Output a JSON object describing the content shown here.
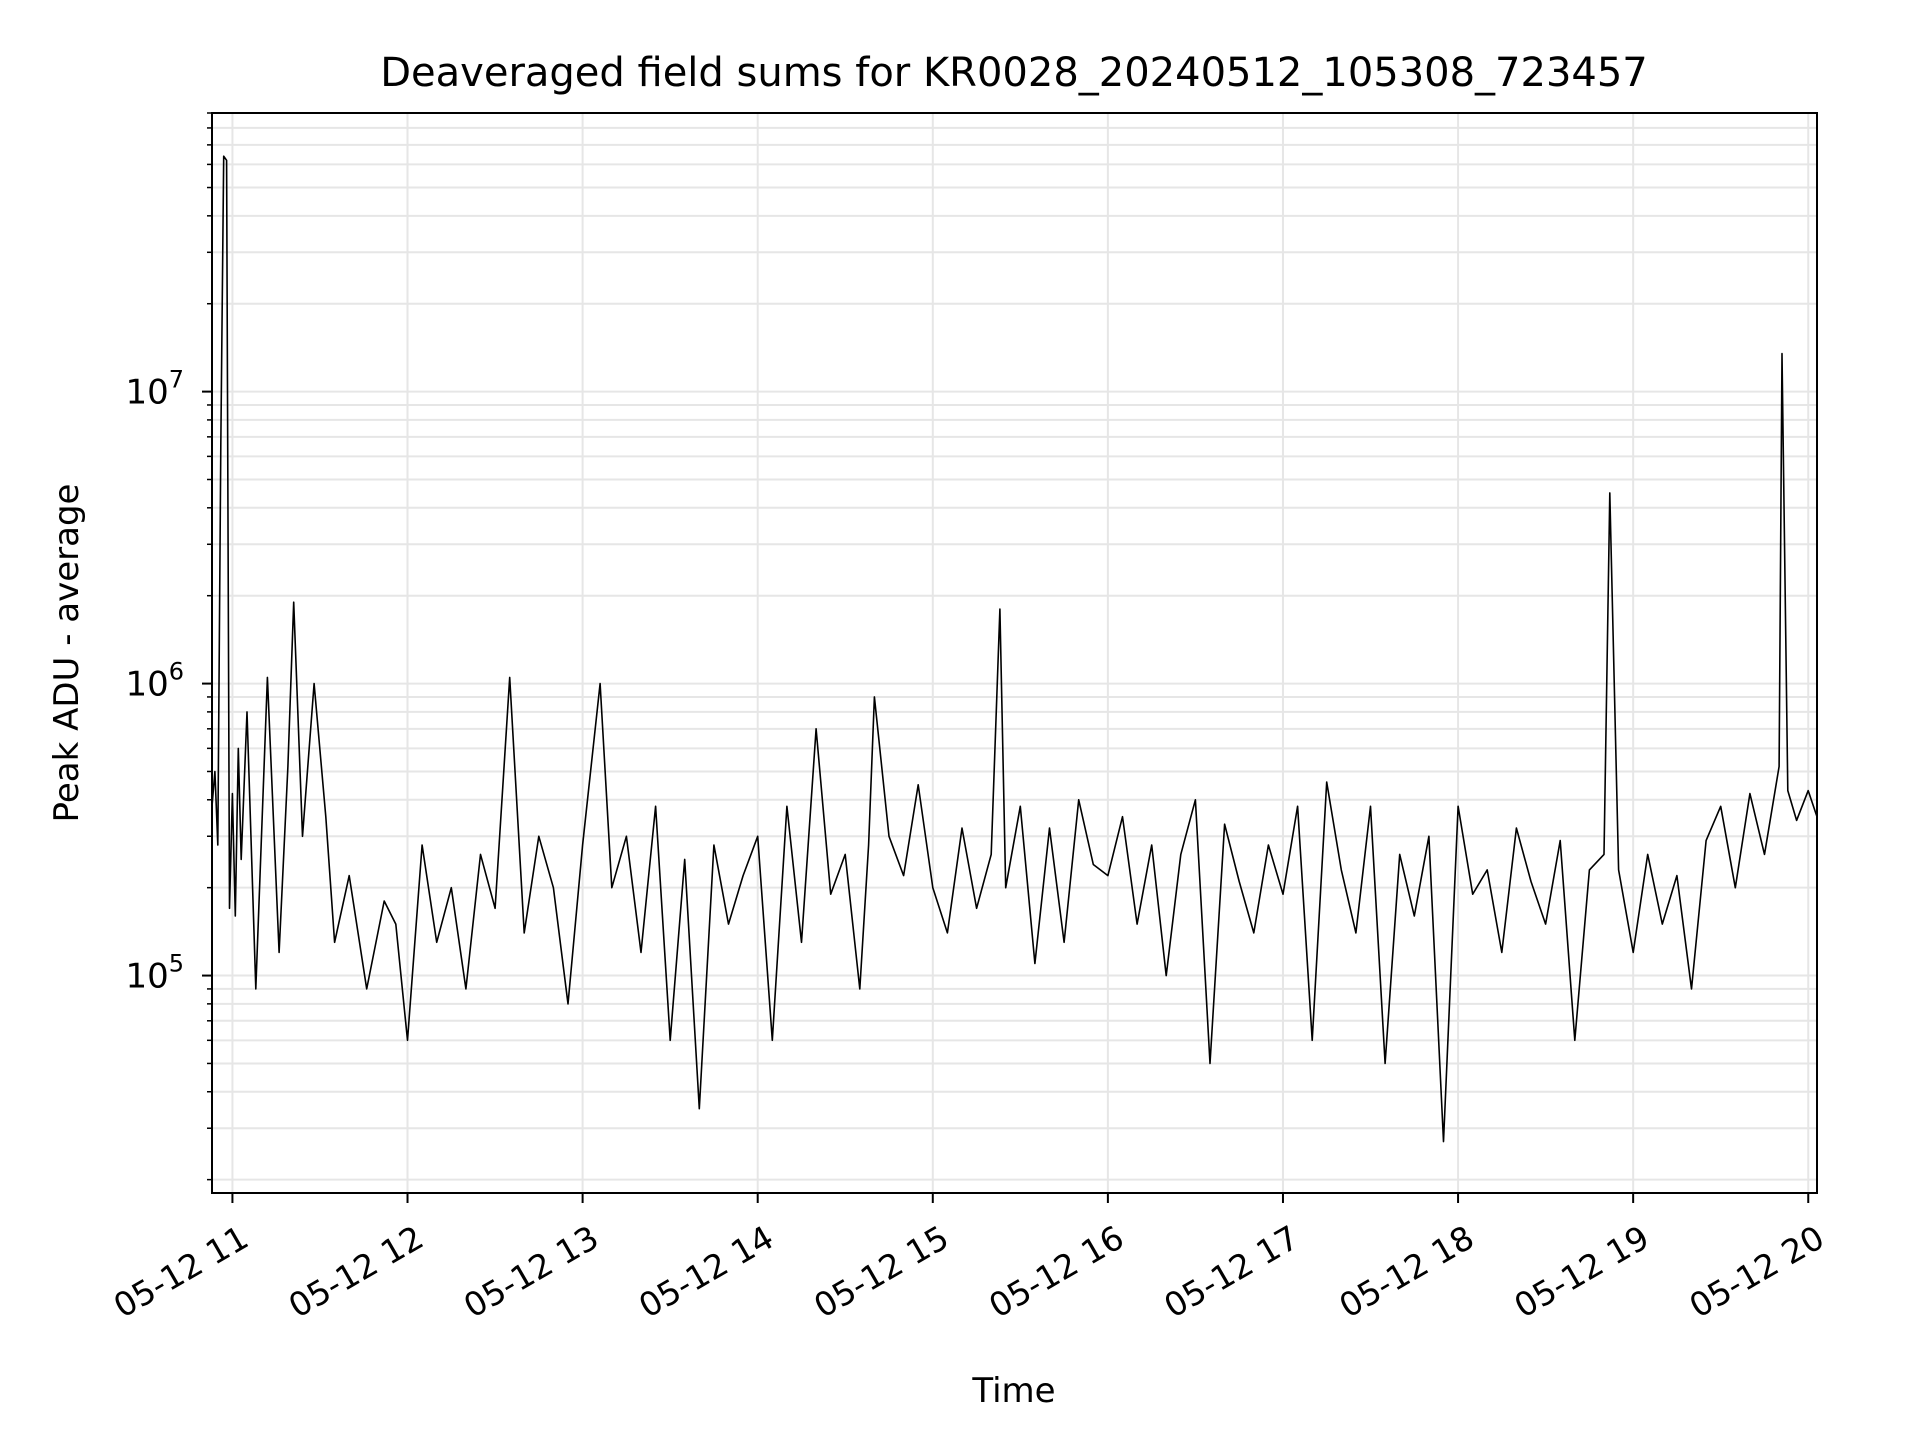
{
  "chart_data": {
    "type": "line",
    "title": "Deaveraged field sums for KR0028_20240512_105308_723457",
    "xlabel": "Time",
    "ylabel": "Peak ADU - average",
    "y_scale": "log",
    "ylim": [
      18000,
      90000000
    ],
    "xlim": [
      "2024-05-12 10:53",
      "2024-05-12 20:03"
    ],
    "grid": true,
    "legend": "none",
    "x_ticks": [
      {
        "value": "2024-05-12 11:00",
        "label": "05-12 11"
      },
      {
        "value": "2024-05-12 12:00",
        "label": "05-12 12"
      },
      {
        "value": "2024-05-12 13:00",
        "label": "05-12 13"
      },
      {
        "value": "2024-05-12 14:00",
        "label": "05-12 14"
      },
      {
        "value": "2024-05-12 15:00",
        "label": "05-12 15"
      },
      {
        "value": "2024-05-12 16:00",
        "label": "05-12 16"
      },
      {
        "value": "2024-05-12 17:00",
        "label": "05-12 17"
      },
      {
        "value": "2024-05-12 18:00",
        "label": "05-12 18"
      },
      {
        "value": "2024-05-12 19:00",
        "label": "05-12 19"
      },
      {
        "value": "2024-05-12 20:00",
        "label": "05-12 20"
      }
    ],
    "y_ticks": [
      {
        "value": 100000,
        "base": "10",
        "exp": "5"
      },
      {
        "value": 1000000,
        "base": "10",
        "exp": "6"
      },
      {
        "value": 10000000,
        "base": "10",
        "exp": "7"
      }
    ],
    "line_color": "#000000",
    "grid_color": "#e6e6e6",
    "series": [
      {
        "x": [
          "2024-05-12 10:53",
          "2024-05-12 10:54",
          "2024-05-12 10:55",
          "2024-05-12 10:56",
          "2024-05-12 10:57",
          "2024-05-12 10:58",
          "2024-05-12 10:59",
          "2024-05-12 11:00",
          "2024-05-12 11:01",
          "2024-05-12 11:02",
          "2024-05-12 11:03",
          "2024-05-12 11:05",
          "2024-05-12 11:08",
          "2024-05-12 11:12",
          "2024-05-12 11:16",
          "2024-05-12 11:19",
          "2024-05-12 11:21",
          "2024-05-12 11:24",
          "2024-05-12 11:28",
          "2024-05-12 11:32",
          "2024-05-12 11:35",
          "2024-05-12 11:40",
          "2024-05-12 11:46",
          "2024-05-12 11:52",
          "2024-05-12 11:56",
          "2024-05-12 12:00",
          "2024-05-12 12:05",
          "2024-05-12 12:10",
          "2024-05-12 12:15",
          "2024-05-12 12:20",
          "2024-05-12 12:25",
          "2024-05-12 12:30",
          "2024-05-12 12:35",
          "2024-05-12 12:40",
          "2024-05-12 12:45",
          "2024-05-12 12:50",
          "2024-05-12 12:55",
          "2024-05-12 13:00",
          "2024-05-12 13:06",
          "2024-05-12 13:10",
          "2024-05-12 13:15",
          "2024-05-12 13:20",
          "2024-05-12 13:25",
          "2024-05-12 13:30",
          "2024-05-12 13:35",
          "2024-05-12 13:40",
          "2024-05-12 13:45",
          "2024-05-12 13:50",
          "2024-05-12 13:55",
          "2024-05-12 14:00",
          "2024-05-12 14:05",
          "2024-05-12 14:10",
          "2024-05-12 14:15",
          "2024-05-12 14:20",
          "2024-05-12 14:25",
          "2024-05-12 14:30",
          "2024-05-12 14:35",
          "2024-05-12 14:38",
          "2024-05-12 14:40",
          "2024-05-12 14:45",
          "2024-05-12 14:50",
          "2024-05-12 14:55",
          "2024-05-12 15:00",
          "2024-05-12 15:05",
          "2024-05-12 15:10",
          "2024-05-12 15:15",
          "2024-05-12 15:20",
          "2024-05-12 15:23",
          "2024-05-12 15:25",
          "2024-05-12 15:30",
          "2024-05-12 15:35",
          "2024-05-12 15:40",
          "2024-05-12 15:45",
          "2024-05-12 15:50",
          "2024-05-12 15:55",
          "2024-05-12 16:00",
          "2024-05-12 16:05",
          "2024-05-12 16:10",
          "2024-05-12 16:15",
          "2024-05-12 16:20",
          "2024-05-12 16:25",
          "2024-05-12 16:30",
          "2024-05-12 16:35",
          "2024-05-12 16:40",
          "2024-05-12 16:45",
          "2024-05-12 16:50",
          "2024-05-12 16:55",
          "2024-05-12 17:00",
          "2024-05-12 17:05",
          "2024-05-12 17:10",
          "2024-05-12 17:15",
          "2024-05-12 17:20",
          "2024-05-12 17:25",
          "2024-05-12 17:30",
          "2024-05-12 17:35",
          "2024-05-12 17:40",
          "2024-05-12 17:45",
          "2024-05-12 17:50",
          "2024-05-12 17:55",
          "2024-05-12 18:00",
          "2024-05-12 18:05",
          "2024-05-12 18:10",
          "2024-05-12 18:15",
          "2024-05-12 18:20",
          "2024-05-12 18:25",
          "2024-05-12 18:30",
          "2024-05-12 18:35",
          "2024-05-12 18:40",
          "2024-05-12 18:45",
          "2024-05-12 18:50",
          "2024-05-12 18:52",
          "2024-05-12 18:55",
          "2024-05-12 19:00",
          "2024-05-12 19:05",
          "2024-05-12 19:10",
          "2024-05-12 19:15",
          "2024-05-12 19:20",
          "2024-05-12 19:25",
          "2024-05-12 19:30",
          "2024-05-12 19:35",
          "2024-05-12 19:40",
          "2024-05-12 19:45",
          "2024-05-12 19:50",
          "2024-05-12 19:51",
          "2024-05-12 19:53",
          "2024-05-12 19:56",
          "2024-05-12 20:00",
          "2024-05-12 20:03"
        ],
        "y": [
          380000,
          500000,
          280000,
          6500000,
          64000000,
          62000000,
          170000,
          420000,
          160000,
          600000,
          250000,
          800000,
          90000,
          1050000,
          120000,
          520000,
          1900000,
          300000,
          1000000,
          350000,
          130000,
          220000,
          90000,
          180000,
          150000,
          60000,
          280000,
          130000,
          200000,
          90000,
          260000,
          170000,
          1050000,
          140000,
          300000,
          200000,
          80000,
          280000,
          1000000,
          200000,
          300000,
          120000,
          380000,
          60000,
          250000,
          35000,
          280000,
          150000,
          220000,
          300000,
          60000,
          380000,
          130000,
          700000,
          190000,
          260000,
          90000,
          280000,
          900000,
          300000,
          220000,
          450000,
          200000,
          140000,
          320000,
          170000,
          260000,
          1800000,
          200000,
          380000,
          110000,
          320000,
          130000,
          400000,
          240000,
          220000,
          350000,
          150000,
          280000,
          100000,
          260000,
          400000,
          50000,
          330000,
          210000,
          140000,
          280000,
          190000,
          380000,
          60000,
          460000,
          230000,
          140000,
          380000,
          50000,
          260000,
          160000,
          300000,
          27000,
          380000,
          190000,
          230000,
          120000,
          320000,
          210000,
          150000,
          290000,
          60000,
          230000,
          260000,
          4500000,
          230000,
          120000,
          260000,
          150000,
          220000,
          90000,
          290000,
          380000,
          200000,
          420000,
          260000,
          520000,
          13500000,
          430000,
          340000,
          430000,
          350000
        ],
        "color": "#000000"
      }
    ]
  }
}
